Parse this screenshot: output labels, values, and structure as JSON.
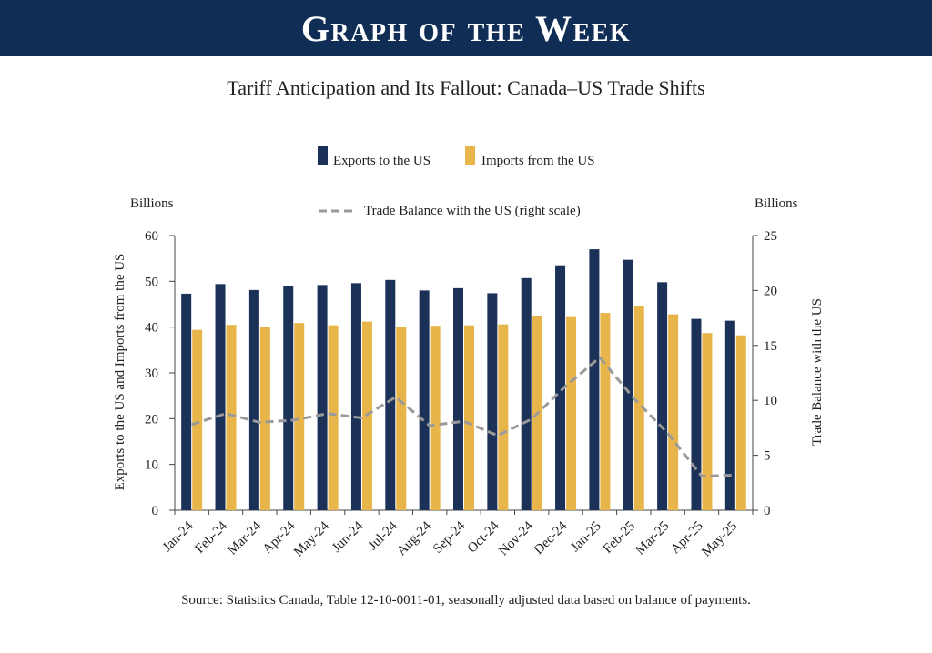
{
  "banner": {
    "title": "Graph of the Week"
  },
  "source": "Source: Statistics Canada, Table 12-10-0011-01, seasonally adjusted data based on balance of payments.",
  "colors": {
    "banner": "#0f2d55",
    "exports": "#1b3157",
    "imports": "#e8b54b",
    "balance": "#9a9a9a"
  },
  "chart_data": {
    "type": "bar",
    "title": "Tariff Anticipation and Its Fallout: Canada–US Trade Shifts",
    "categories": [
      "Jan-24",
      "Feb-24",
      "Mar-24",
      "Apr-24",
      "May-24",
      "Jun-24",
      "Jul-24",
      "Aug-24",
      "Sep-24",
      "Oct-24",
      "Nov-24",
      "Dec-24",
      "Jan-25",
      "Feb-25",
      "Mar-25",
      "Apr-25",
      "May-25"
    ],
    "ylabel": "Exports to the US and  Imports from the US",
    "ylabel_right": "Trade Balance with the US",
    "yunit_left": "Billions",
    "yunit_right": "Billions",
    "ylim": [
      0,
      60
    ],
    "yticks": [
      0,
      10,
      20,
      30,
      40,
      50,
      60
    ],
    "ylim_right": [
      0,
      25
    ],
    "yticks_right": [
      0,
      5,
      10,
      15,
      20,
      25
    ],
    "legend_placement": "top-center",
    "grid": false,
    "series": [
      {
        "name": "Exports to the US",
        "type": "bar",
        "axis": "left",
        "values": [
          47.3,
          49.4,
          48.1,
          49.0,
          49.2,
          49.6,
          50.3,
          48.0,
          48.5,
          47.4,
          50.7,
          53.5,
          57.0,
          54.7,
          49.8,
          41.8,
          41.4
        ]
      },
      {
        "name": "Imports from the US",
        "type": "bar",
        "axis": "left",
        "values": [
          39.4,
          40.5,
          40.1,
          40.9,
          40.4,
          41.2,
          40.0,
          40.3,
          40.4,
          40.6,
          42.4,
          42.2,
          43.1,
          44.5,
          42.8,
          38.7,
          38.2
        ]
      },
      {
        "name": "Trade Balance with the US (right scale)",
        "type": "line",
        "axis": "right",
        "style": "dashed",
        "values": [
          7.8,
          8.8,
          8.0,
          8.2,
          8.8,
          8.4,
          10.3,
          7.7,
          8.1,
          6.8,
          8.3,
          11.3,
          13.9,
          10.2,
          7.0,
          3.1,
          3.2
        ]
      }
    ]
  }
}
